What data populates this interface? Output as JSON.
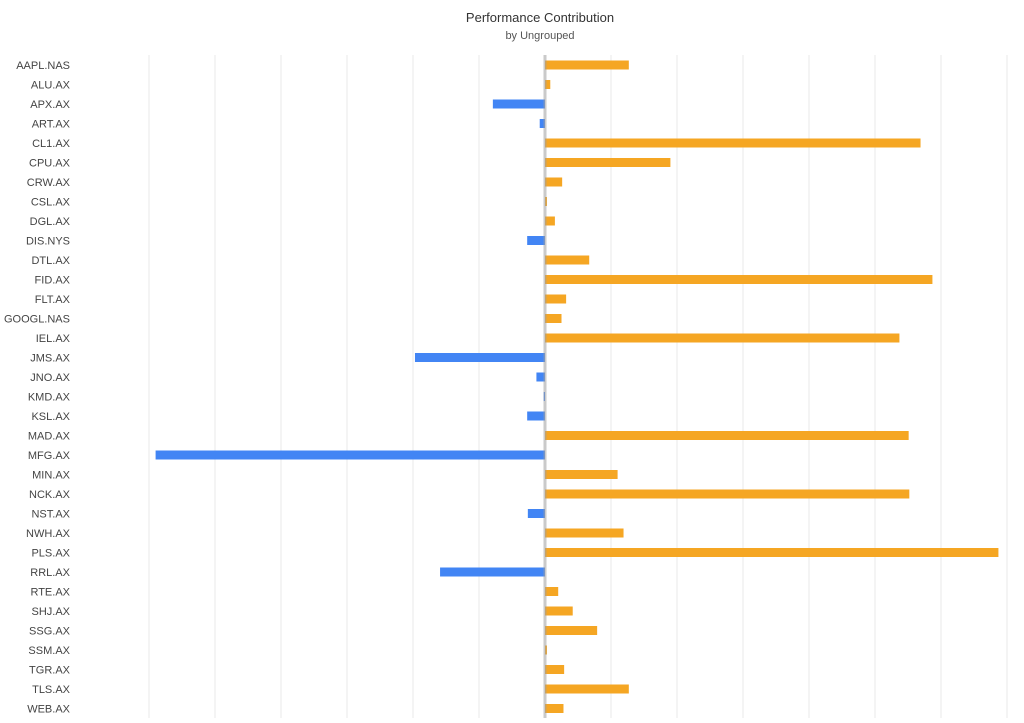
{
  "chart_data": {
    "type": "bar",
    "orientation": "horizontal",
    "title": "Performance Contribution",
    "subtitle": "by Ungrouped",
    "xlabel": "",
    "ylabel": "",
    "grid": true,
    "legend": "none",
    "xlim": [
      -6,
      7
    ],
    "colors": {
      "positive": "#f5a623",
      "negative": "#4285f4",
      "zero_line": "#9e9e9e",
      "grid": "#e8e8e8"
    },
    "categories": [
      "AAPL.NAS",
      "ALU.AX",
      "APX.AX",
      "ART.AX",
      "CL1.AX",
      "CPU.AX",
      "CRW.AX",
      "CSL.AX",
      "DGL.AX",
      "DIS.NYS",
      "DTL.AX",
      "FID.AX",
      "FLT.AX",
      "GOOGL.NAS",
      "IEL.AX",
      "JMS.AX",
      "JNO.AX",
      "KMD.AX",
      "KSL.AX",
      "MAD.AX",
      "MFG.AX",
      "MIN.AX",
      "NCK.AX",
      "NST.AX",
      "NWH.AX",
      "PLS.AX",
      "RRL.AX",
      "RTE.AX",
      "SHJ.AX",
      "SSG.AX",
      "SSM.AX",
      "TGR.AX",
      "TLS.AX",
      "WEB.AX"
    ],
    "values": [
      1.27,
      0.08,
      -0.79,
      -0.08,
      5.69,
      1.9,
      0.26,
      0.03,
      0.15,
      -0.27,
      0.67,
      5.87,
      0.32,
      0.25,
      5.37,
      -1.97,
      -0.13,
      -0.02,
      -0.27,
      5.51,
      -5.9,
      1.1,
      5.52,
      -0.26,
      1.19,
      6.87,
      -1.59,
      0.2,
      0.42,
      0.79,
      0.03,
      0.29,
      1.27,
      0.28
    ]
  }
}
